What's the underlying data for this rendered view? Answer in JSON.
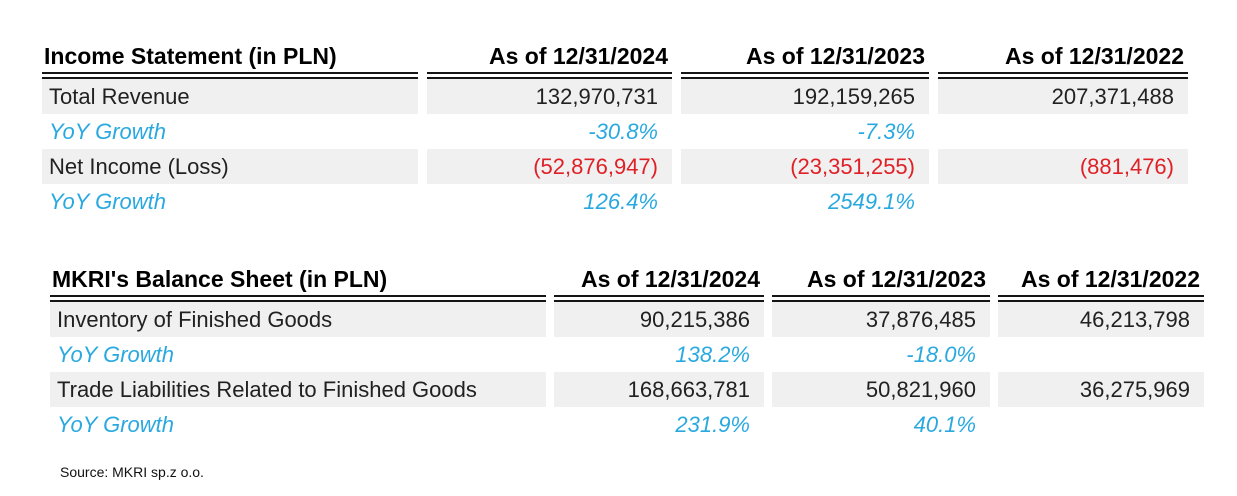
{
  "colors": {
    "growth_blue": "#29A9DF",
    "negative_red": "#DF2026",
    "row_shade": "#F0F0F0",
    "rule_black": "#151515",
    "text_dark": "#212121"
  },
  "source_note": "Source: MKRI sp.z o.o.",
  "chart_data": [
    {
      "type": "table",
      "title": "Income Statement (in PLN)",
      "columns": [
        "As of 12/31/2024",
        "As of 12/31/2023",
        "As of 12/31/2022"
      ],
      "rows": [
        {
          "label": "Total Revenue",
          "style": "value",
          "values": [
            "132,970,731",
            "192,159,265",
            "207,371,488"
          ]
        },
        {
          "label": "YoY Growth",
          "style": "growth",
          "values": [
            "-30.8%",
            "-7.3%",
            ""
          ]
        },
        {
          "label": "Net Income (Loss)",
          "style": "negative",
          "values": [
            "(52,876,947)",
            "(23,351,255)",
            "(881,476)"
          ]
        },
        {
          "label": "YoY Growth",
          "style": "growth",
          "values": [
            "126.4%",
            "2549.1%",
            ""
          ]
        }
      ]
    },
    {
      "type": "table",
      "title": "MKRI's Balance Sheet (in PLN)",
      "columns": [
        "As of 12/31/2024",
        "As of 12/31/2023",
        "As of 12/31/2022"
      ],
      "rows": [
        {
          "label": "Inventory of Finished Goods",
          "style": "value",
          "values": [
            "90,215,386",
            "37,876,485",
            "46,213,798"
          ]
        },
        {
          "label": "YoY Growth",
          "style": "growth",
          "values": [
            "138.2%",
            "-18.0%",
            ""
          ]
        },
        {
          "label": "Trade Liabilities Related to Finished Goods",
          "style": "value",
          "values": [
            "168,663,781",
            "50,821,960",
            "36,275,969"
          ]
        },
        {
          "label": "YoY Growth",
          "style": "growth",
          "values": [
            "231.9%",
            "40.1%",
            ""
          ]
        }
      ]
    }
  ]
}
